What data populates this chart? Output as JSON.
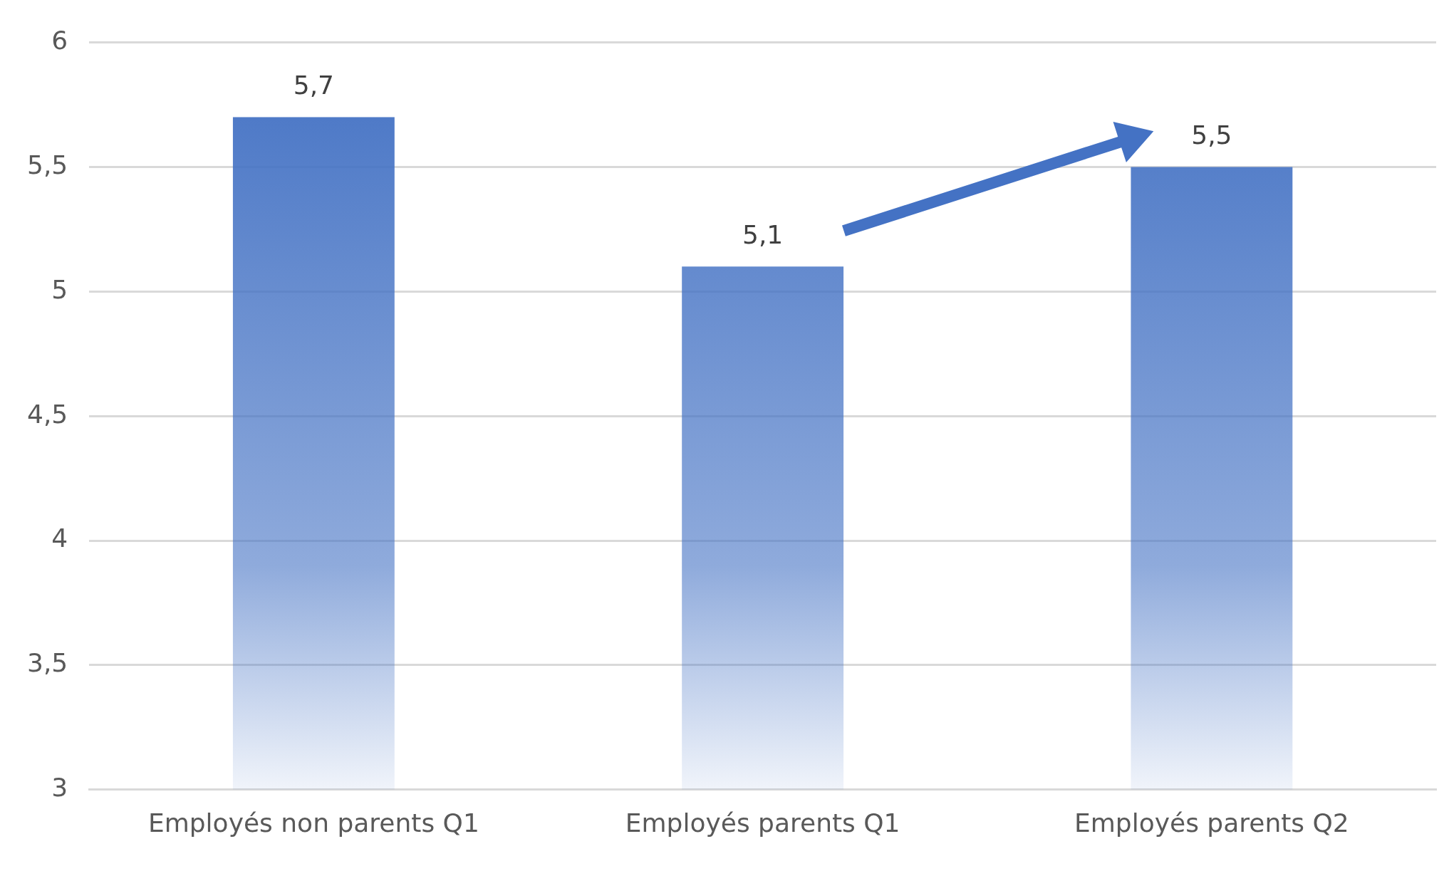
{
  "chart_data": {
    "type": "bar",
    "categories": [
      "Employés non parents Q1",
      "Employés parents Q1",
      "Employés parents Q2"
    ],
    "values": [
      5.7,
      5.1,
      5.5
    ],
    "value_labels": [
      "5,7",
      "5,1",
      "5,5"
    ],
    "color": "#4472c4",
    "ylim": [
      3,
      6
    ],
    "yticks": [
      3,
      {
        "value": 3.5,
        "label": "3,5"
      },
      4,
      {
        "value": 4.5,
        "label": "4,5"
      },
      5,
      {
        "value": 5.5,
        "label": "5,5"
      },
      6
    ],
    "grid": "y",
    "legend": false
  }
}
